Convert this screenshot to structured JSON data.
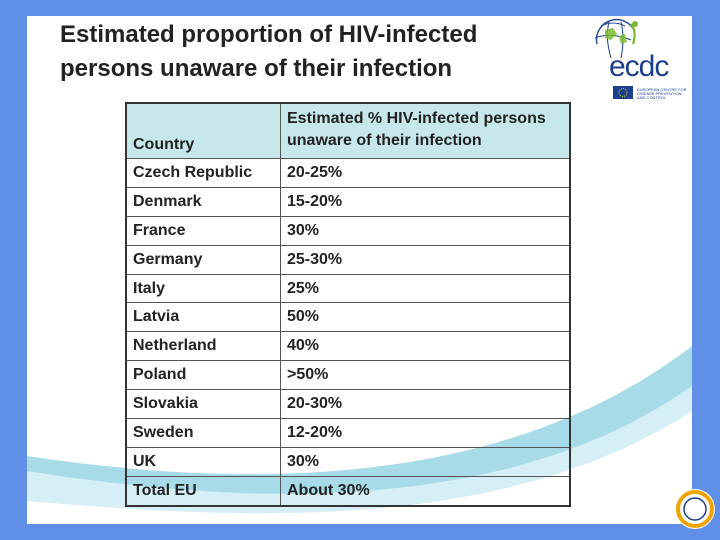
{
  "title": {
    "line1": "Estimated proportion of HIV-infected",
    "line2": "persons unaware of their infection"
  },
  "logo": {
    "wordmark": "ecdc",
    "subtitle": "EUROPEAN CENTRE FOR DISEASE PREVENTION AND CONTROL"
  },
  "table": {
    "headers": [
      "Country",
      "Estimated % HIV-infected persons unaware of their infection"
    ],
    "rows": [
      {
        "country": "Czech Republic",
        "value": "20-25%"
      },
      {
        "country": "Denmark",
        "value": "15-20%"
      },
      {
        "country": "France",
        "value": "30%"
      },
      {
        "country": "Germany",
        "value": "25-30%"
      },
      {
        "country": "Italy",
        "value": "25%"
      },
      {
        "country": "Latvia",
        "value": "50%"
      },
      {
        "country": "Netherland",
        "value": "40%"
      },
      {
        "country": "Poland",
        "value": ">50%"
      },
      {
        "country": "Slovakia",
        "value": "20-30%"
      },
      {
        "country": "Sweden",
        "value": "12-20%"
      },
      {
        "country": "UK",
        "value": "30%"
      },
      {
        "country": "Total EU",
        "value": "About 30%"
      }
    ]
  },
  "colors": {
    "background": "#5f8fe6",
    "header_fill": "#c7e8ea",
    "swoosh": "#a8dbe8",
    "logo_blue": "#1b3f8f",
    "logo_green": "#7dbb2d"
  }
}
